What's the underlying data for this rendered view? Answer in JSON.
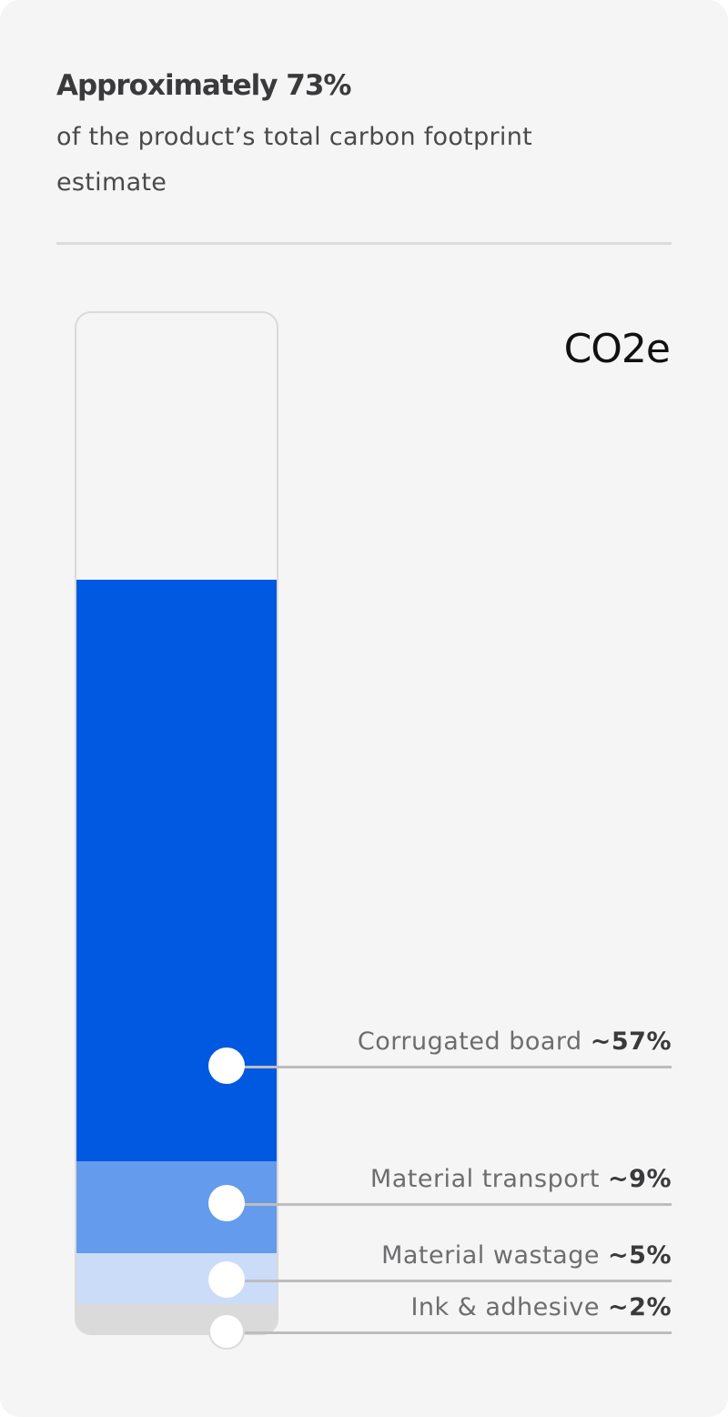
{
  "header": {
    "title": "Approximately 73%",
    "subtitle": "of the product’s total carbon footprint estimate"
  },
  "chart_data": {
    "type": "bar",
    "stacked": true,
    "orientation": "vertical",
    "unit_label": "CO2e",
    "ylim": [
      0,
      100
    ],
    "categories": [
      "Corrugated board",
      "Material transport",
      "Material wastage",
      "Ink & adhesive"
    ],
    "values": [
      57,
      9,
      5,
      2
    ],
    "value_labels": [
      "~57%",
      "~9%",
      "~5%",
      "~2%"
    ],
    "colors": [
      "#0059e0",
      "#649bec",
      "#cbdcf8",
      "#dadada"
    ],
    "grid": false,
    "legend": "right"
  }
}
